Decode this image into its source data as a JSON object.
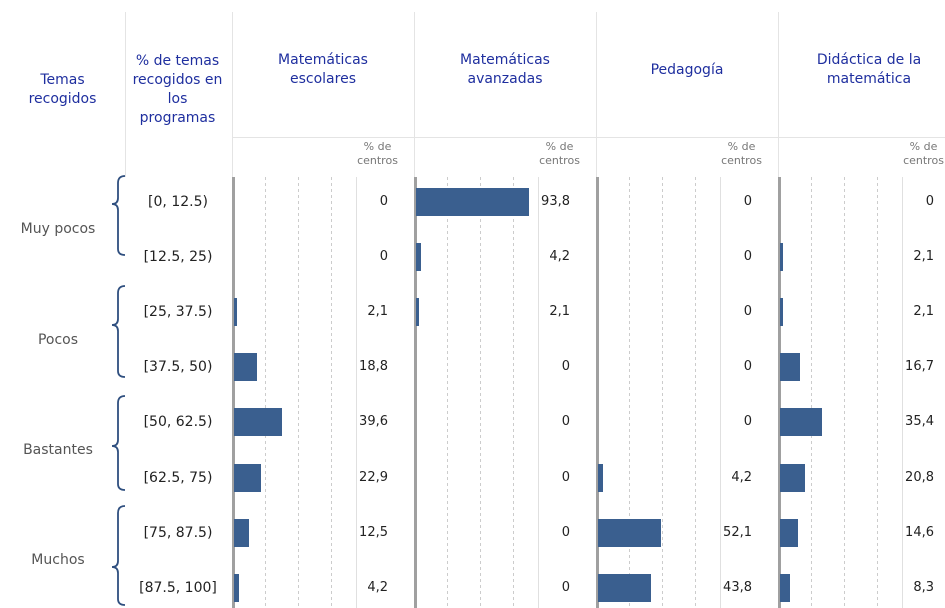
{
  "header": {
    "topics": "Temas recogidos",
    "percent": "% de temas recogidos en los programas",
    "subheader": "% de centros"
  },
  "groups": [
    "Muy pocos",
    "Pocos",
    "Bastantes",
    "Muchos"
  ],
  "rows": [
    "[0, 12.5)",
    "[12.5, 25)",
    "[25, 37.5)",
    "[37.5, 50)",
    "[50, 62.5)",
    "[62.5, 75)",
    "[75, 87.5)",
    "[87.5, 100]"
  ],
  "series": [
    {
      "name": "Matemáticas escolares",
      "values": [
        0,
        0,
        2.1,
        18.8,
        39.6,
        22.9,
        12.5,
        4.2
      ],
      "value_labels": [
        "0",
        "0",
        "2,1",
        "18,8",
        "39,6",
        "22,9",
        "12,5",
        "4,2"
      ]
    },
    {
      "name": "Matemáticas avanzadas",
      "values": [
        93.8,
        4.2,
        2.1,
        0,
        0,
        0,
        0,
        0
      ],
      "value_labels": [
        "93,8",
        "4,2",
        "2,1",
        "0",
        "0",
        "0",
        "0",
        "0"
      ]
    },
    {
      "name": "Pedagogía",
      "values": [
        0,
        0,
        0,
        0,
        0,
        4.2,
        52.1,
        43.8
      ],
      "value_labels": [
        "0",
        "0",
        "0",
        "0",
        "0",
        "4,2",
        "52,1",
        "43,8"
      ]
    },
    {
      "name": "Didáctica de la matemática",
      "values": [
        0,
        2.1,
        2.1,
        16.7,
        35.4,
        20.8,
        14.6,
        8.3
      ],
      "value_labels": [
        "0",
        "2,1",
        "2,1",
        "16,7",
        "35,4",
        "20,8",
        "14,6",
        "8,3"
      ]
    }
  ],
  "color": "#3a5f8f"
}
